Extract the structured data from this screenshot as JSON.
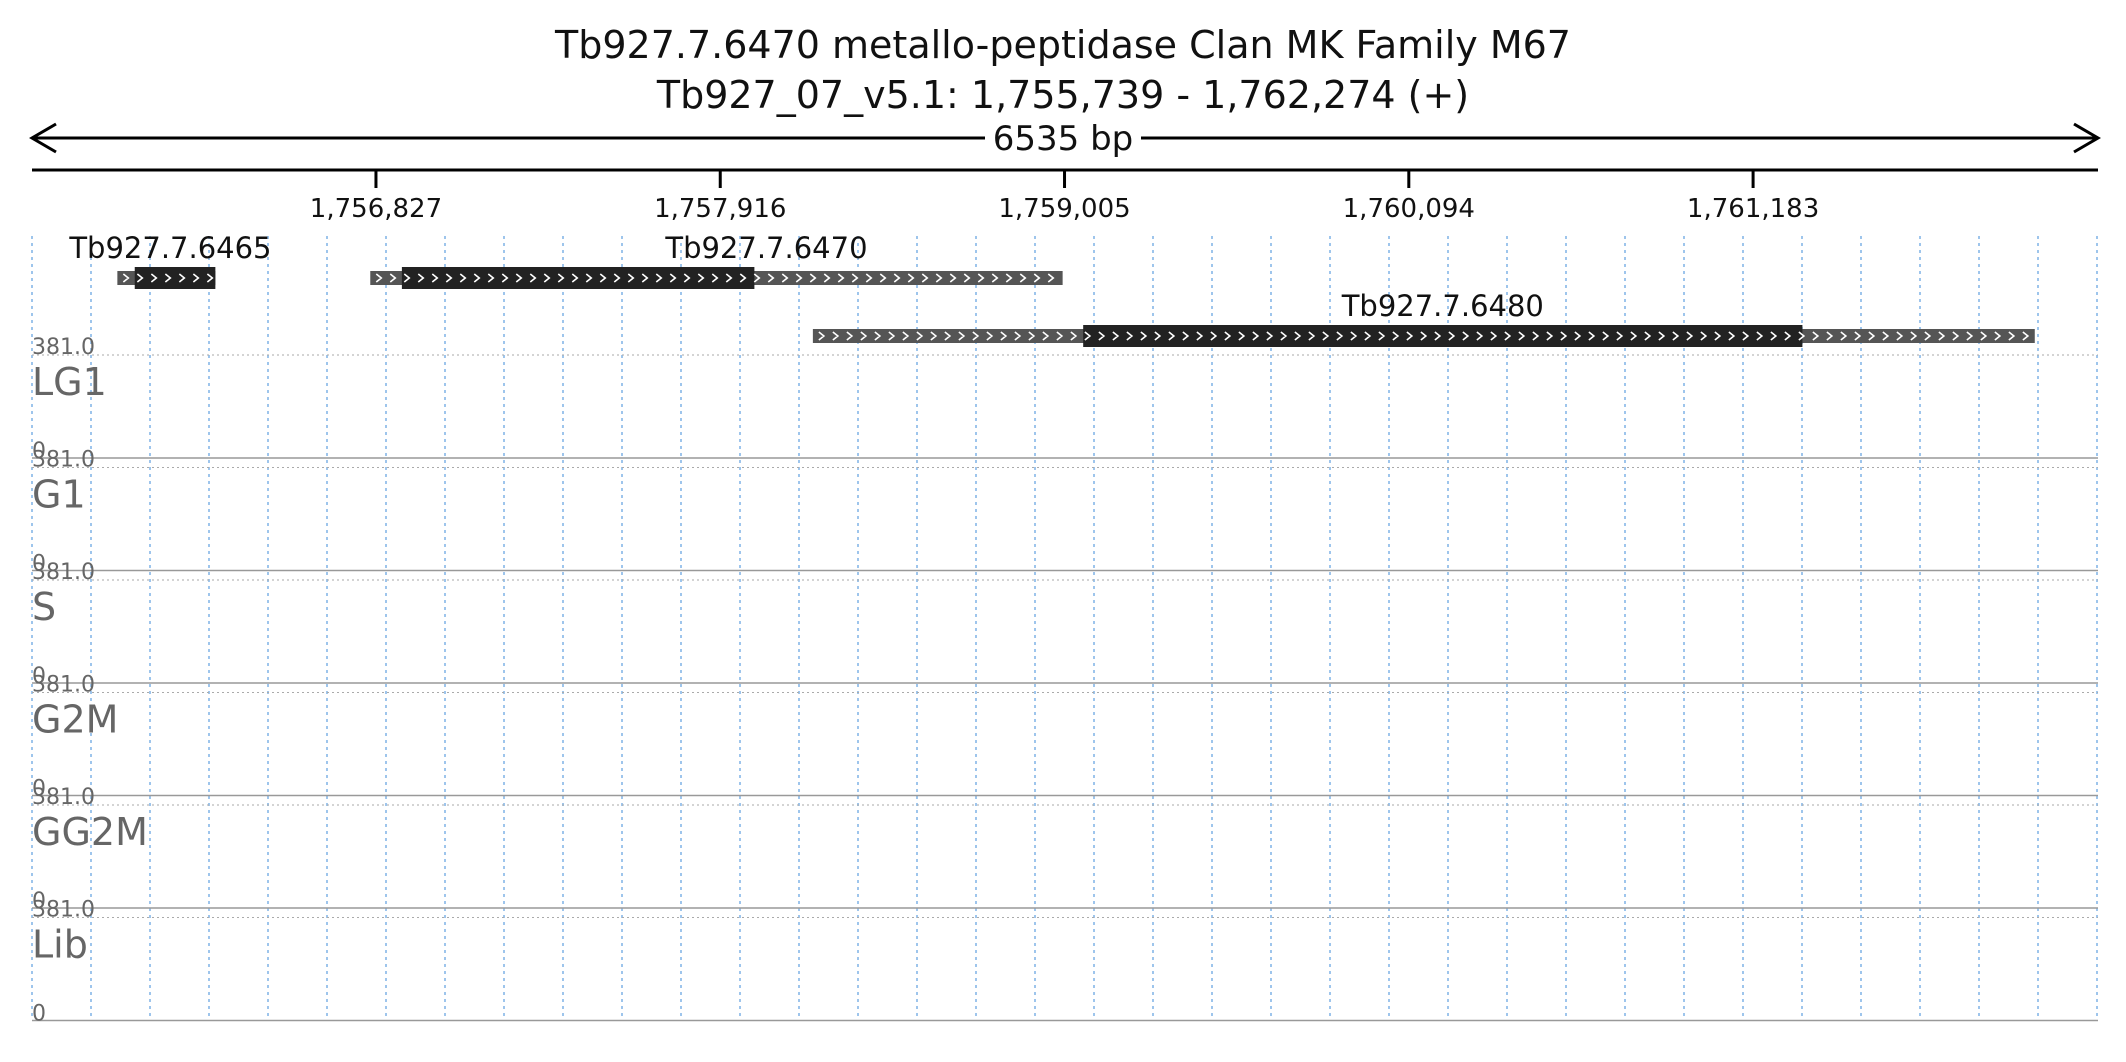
{
  "chart_data": {
    "type": "area",
    "title": "Tb927.7.6470  metallo-peptidase  Clan MK  Family M67",
    "subtitle": "Tb927_07_v5.1: 1,755,739 - 1,762,274 (+)",
    "span_label": "6535 bp",
    "x_range": [
      1755739,
      1762274
    ],
    "x_ticks": [
      {
        "value": 1756827,
        "label": "1,756,827"
      },
      {
        "value": 1757916,
        "label": "1,757,916"
      },
      {
        "value": 1759005,
        "label": "1,759,005"
      },
      {
        "value": 1760094,
        "label": "1,760,094"
      },
      {
        "value": 1761183,
        "label": "1,761,183"
      }
    ],
    "grid": true,
    "genes": [
      {
        "name": "Tb927.7.6465",
        "strand": "+",
        "start": 1756009,
        "end": 1756319,
        "cds_start": 1756064,
        "cds_end": 1756319
      },
      {
        "name": "Tb927.7.6470",
        "strand": "+",
        "start": 1756809,
        "end": 1758999,
        "cds_start": 1756909,
        "cds_end": 1758024
      },
      {
        "name": "Tb927.7.6480",
        "strand": "+",
        "start": 1758209,
        "end": 1762074,
        "cds_start": 1759064,
        "cds_end": 1761339
      }
    ],
    "y_range": [
      0,
      381.0
    ],
    "y_max_label": "381.0",
    "y_min_label": "0",
    "series": [
      {
        "name": "LG1",
        "color": "#f7a54a",
        "values": [
          0,
          0,
          0,
          0,
          0,
          0,
          0,
          0,
          0,
          0,
          0,
          0,
          0,
          0,
          0,
          0,
          0,
          0,
          0,
          0,
          0,
          0,
          0,
          0,
          0,
          0,
          0,
          0,
          0,
          0,
          0,
          0,
          0,
          0,
          0,
          0,
          0,
          0,
          0,
          0,
          0,
          0,
          0,
          0,
          0,
          0,
          0,
          0,
          0,
          0,
          0,
          0,
          0,
          0,
          0,
          0,
          0,
          0,
          0,
          0,
          0,
          0,
          0,
          0,
          0,
          0,
          0,
          0,
          0,
          0,
          0,
          0,
          0,
          0,
          0,
          0,
          0,
          0,
          0,
          0,
          0,
          0,
          0,
          0,
          0,
          0,
          0,
          0,
          0,
          0,
          0,
          0,
          0,
          0,
          0,
          0,
          0,
          0,
          0,
          0,
          0,
          0,
          0,
          0,
          0,
          0,
          0,
          0,
          0,
          0,
          0,
          0,
          0,
          0,
          0,
          0,
          0,
          0,
          0,
          0,
          0,
          0,
          0,
          0,
          0,
          0,
          0,
          0,
          0,
          0
        ]
      },
      {
        "name": "G1",
        "color": "#c08fc6",
        "values": [
          0,
          0,
          0,
          0,
          0,
          0,
          0,
          0,
          0,
          0,
          0,
          0,
          0,
          0,
          0,
          0,
          0,
          0,
          0,
          0,
          0,
          0,
          0,
          0,
          0,
          0,
          0,
          0,
          0,
          0,
          0,
          0,
          0,
          0,
          0,
          0,
          0,
          0,
          0,
          0,
          0,
          0,
          0,
          0,
          0,
          0,
          0,
          0,
          0,
          0,
          0,
          0,
          0,
          0,
          0,
          0,
          0,
          0,
          0,
          0,
          0,
          0,
          0,
          0,
          0,
          0,
          0,
          0,
          0,
          0,
          0,
          0,
          0,
          0,
          0,
          0,
          0,
          0,
          0,
          0,
          0,
          0,
          0,
          0,
          0,
          0,
          0,
          0,
          0,
          0,
          0,
          0,
          0,
          0,
          0,
          0,
          0,
          0,
          0,
          0,
          0,
          0,
          0,
          0,
          0,
          0,
          0,
          0,
          0,
          0,
          0,
          0,
          0,
          0,
          0,
          0,
          0,
          0,
          0,
          0,
          0,
          0,
          0,
          0,
          0,
          0,
          0,
          0,
          0,
          0
        ]
      },
      {
        "name": "S",
        "color": "#79c97a",
        "values": [
          0,
          0,
          0,
          0,
          0,
          0,
          0,
          0,
          0,
          0,
          0,
          0,
          0,
          0,
          0,
          0,
          0,
          0,
          0,
          0,
          0,
          0,
          0,
          0,
          0,
          0,
          0,
          0,
          0,
          0,
          0,
          0,
          0,
          0,
          0,
          0,
          0,
          0,
          0,
          0,
          0,
          0,
          0,
          0,
          0,
          0,
          0,
          0,
          0,
          0,
          0,
          0,
          0,
          0,
          0,
          0,
          0,
          0,
          0,
          0,
          0,
          0,
          0,
          0,
          0,
          0,
          0,
          0,
          0,
          0,
          0,
          0,
          0,
          0,
          0,
          0,
          0,
          0,
          0,
          0,
          0,
          0,
          0,
          0,
          0,
          0,
          0,
          0,
          0,
          0,
          0,
          0,
          0,
          0,
          0,
          0,
          0,
          0,
          0,
          0,
          0,
          0,
          0,
          0,
          0,
          0,
          0,
          0,
          0,
          0,
          0,
          0,
          0,
          0,
          0,
          0,
          0,
          0,
          0,
          0,
          0,
          0,
          0,
          0,
          0,
          0,
          0,
          0,
          0,
          0
        ]
      },
      {
        "name": "G2M",
        "color": "#6ba7db",
        "values": [
          0,
          0,
          0,
          0,
          0,
          0,
          0,
          0,
          0,
          0,
          0,
          0,
          0,
          0,
          0,
          0,
          0,
          0,
          0,
          0,
          0,
          0,
          0,
          0,
          0,
          0,
          0,
          0,
          0,
          0,
          0,
          0,
          0,
          0,
          0,
          0,
          0,
          0,
          0,
          0,
          0,
          0,
          0,
          0,
          0,
          0,
          0,
          0,
          0,
          0,
          0,
          0,
          0,
          0,
          0,
          0,
          0,
          0,
          0,
          0,
          0,
          0,
          0,
          0,
          0,
          0,
          0,
          0,
          0,
          0,
          0,
          0,
          0,
          0,
          0,
          0,
          0,
          0,
          0,
          0,
          0,
          0,
          0,
          0,
          0,
          0,
          0,
          0,
          0,
          0,
          0,
          0,
          0,
          0,
          0,
          0,
          0,
          0,
          0,
          0,
          0,
          0,
          0,
          0,
          0,
          0,
          0,
          0,
          0,
          0,
          0,
          0,
          0,
          0,
          0,
          0,
          0,
          0,
          0,
          0,
          0,
          0,
          0,
          0,
          0,
          0,
          0,
          0,
          0,
          0
        ]
      },
      {
        "name": "GG2M",
        "color": "#f08fbd",
        "values": [
          0,
          0,
          0,
          0,
          0,
          0,
          0,
          0,
          0,
          0,
          0,
          0,
          0,
          0,
          0,
          0,
          0,
          0,
          0,
          0,
          0,
          0,
          0,
          0,
          0,
          0,
          0,
          0,
          0,
          0,
          0,
          0,
          0,
          0,
          0,
          0,
          0,
          0,
          0,
          0,
          0,
          0,
          0,
          0,
          0,
          0,
          0,
          0,
          0,
          0,
          0,
          0,
          0,
          0,
          0,
          0,
          0,
          0,
          0,
          0,
          0,
          0,
          0,
          0,
          0,
          0,
          0,
          0,
          0,
          0,
          0,
          0,
          0,
          0,
          0,
          0,
          0,
          0,
          0,
          0,
          0,
          0,
          0,
          0,
          0,
          0,
          0,
          0,
          0,
          0,
          0,
          0,
          0,
          0,
          0,
          0,
          0,
          0,
          0,
          0,
          0,
          0,
          0,
          0,
          0,
          0,
          0,
          0,
          0,
          0,
          0,
          0,
          0,
          0,
          0,
          0,
          0,
          0,
          0,
          0,
          0,
          0,
          0,
          0,
          0,
          0,
          0,
          0,
          0,
          0
        ]
      },
      {
        "name": "Lib",
        "color": "#dcd25a",
        "values": [
          0,
          0,
          0,
          0,
          0,
          0,
          0,
          0,
          0,
          0,
          0,
          0,
          0,
          0,
          0,
          0,
          0,
          0,
          0,
          0,
          0,
          0,
          0,
          0,
          0,
          0,
          0,
          0,
          0,
          0,
          0,
          0,
          0,
          0,
          0,
          0,
          0,
          0,
          0,
          0,
          0,
          0,
          0,
          0,
          0,
          0,
          0,
          0,
          0,
          0,
          0,
          0,
          0,
          0,
          0,
          0,
          0,
          0,
          0,
          0,
          0,
          0,
          0,
          0,
          0,
          0,
          0,
          0,
          0,
          0,
          0,
          0,
          0,
          0,
          0,
          0,
          0,
          0,
          0,
          0,
          0,
          0,
          0,
          0,
          0,
          0,
          0,
          0,
          0,
          0,
          0,
          0,
          0,
          0,
          0,
          0,
          0,
          0,
          0,
          0,
          0,
          0,
          0,
          0,
          0,
          0,
          0,
          0,
          0,
          0,
          0,
          0,
          0,
          0,
          0,
          0,
          0,
          0,
          0,
          0,
          0,
          0,
          0,
          0,
          0,
          0,
          0,
          0,
          0,
          0
        ]
      }
    ]
  },
  "colors": {
    "text": "#111111",
    "axis": "#000000",
    "grid": "#7fb2e5",
    "track_label": "#666666",
    "gene_cds": "#222222",
    "gene_utr": "#555555",
    "gene_arrow": "#ffffff"
  }
}
